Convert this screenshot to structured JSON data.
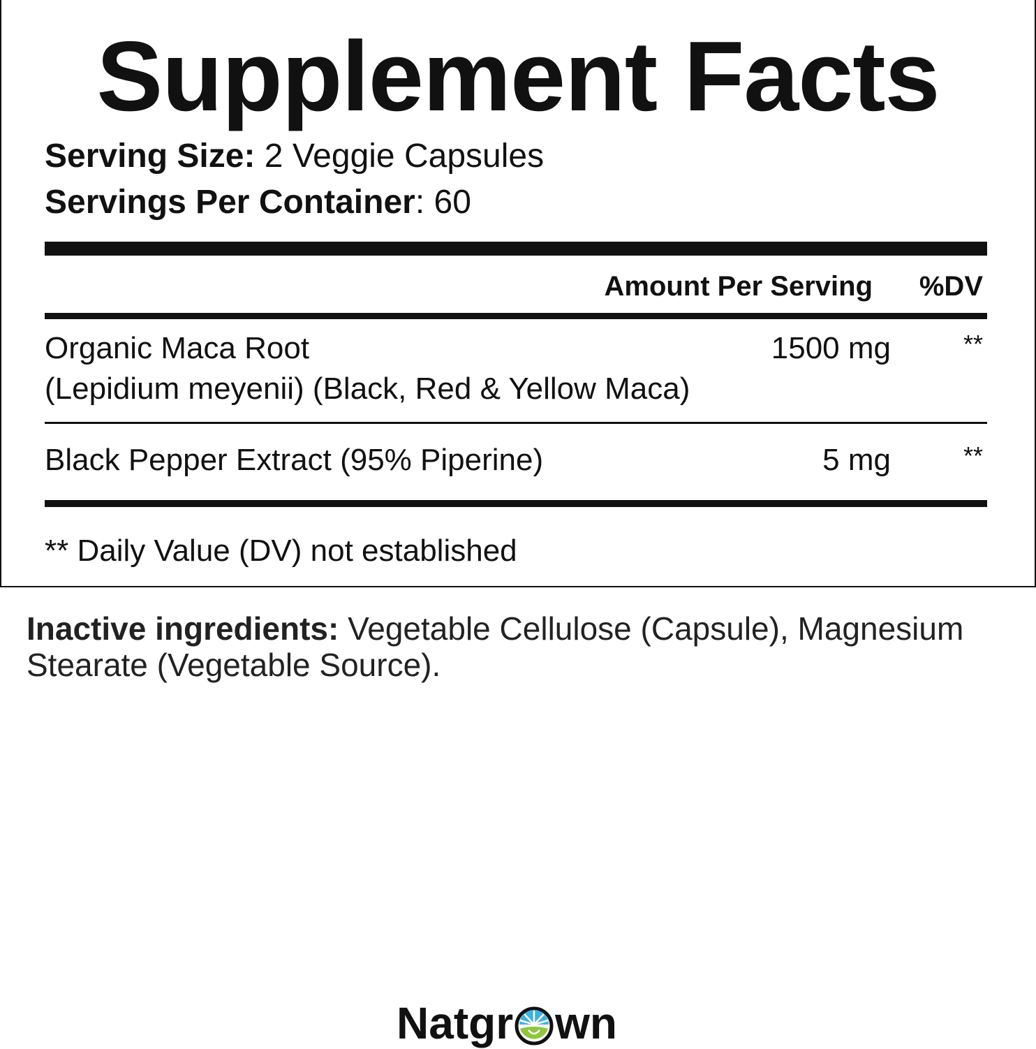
{
  "title": "Supplement Facts",
  "serving_size": {
    "label": "Serving Size:",
    "value": "2 Veggie Capsules"
  },
  "servings_per_container": {
    "label": "Servings Per Container",
    "value": ": 60"
  },
  "columns": {
    "amount": "Amount Per Serving",
    "dv": "%DV"
  },
  "ingredients": [
    {
      "name": "Organic Maca Root",
      "detail": "(Lepidium meyenii) (Black, Red & Yellow Maca)",
      "amount": "1500 mg",
      "dv": "**"
    },
    {
      "name": "Black Pepper Extract (95% Piperine)",
      "amount": "5 mg",
      "dv": "**"
    }
  ],
  "footnote": "** Daily Value (DV) not established",
  "inactive": {
    "label": "Inactive ingredients:",
    "text": " Vegetable Cellulose (Capsule), Magnesium Stearate (Vegetable Source)."
  },
  "brand": {
    "before": "Natgr",
    "after": "wn",
    "colors": {
      "sky": "#3fb1e3",
      "leaf": "#8dc63f"
    }
  }
}
